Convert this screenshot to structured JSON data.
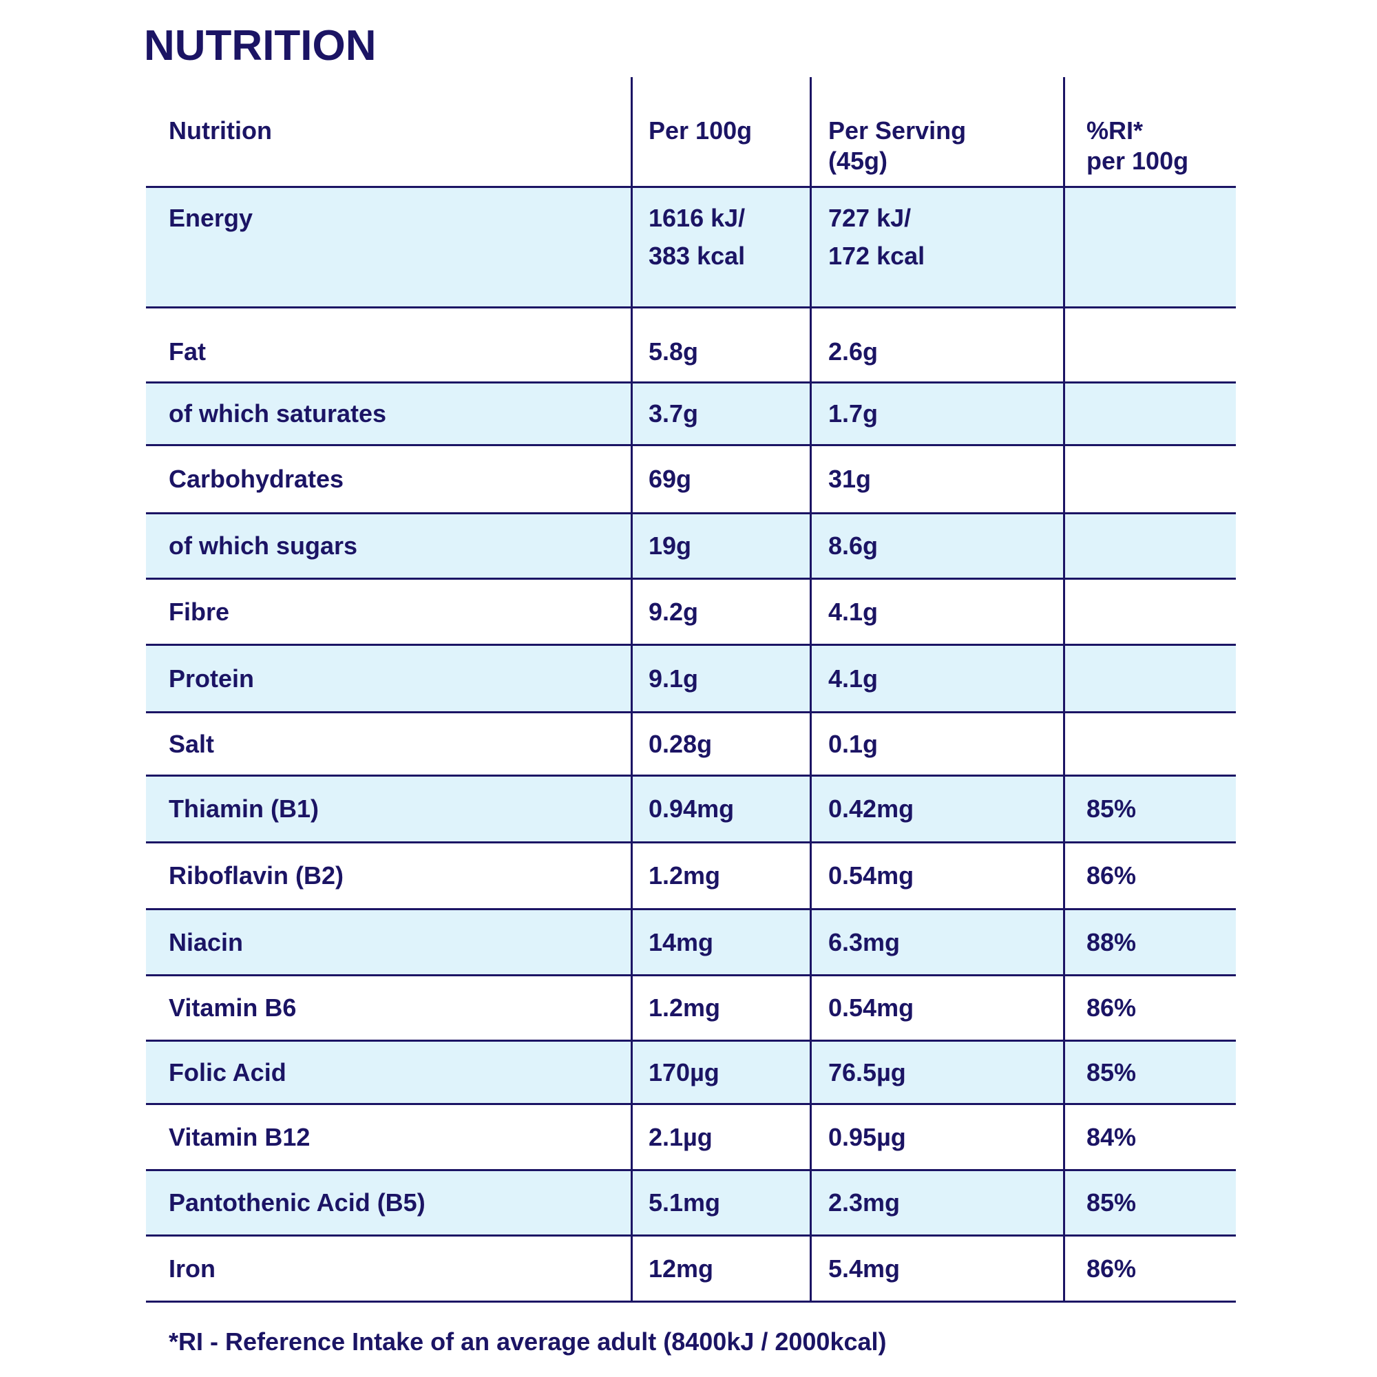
{
  "title": "NUTRITION",
  "colors": {
    "text": "#1b1464",
    "shade": "#dff3fb",
    "line": "#1b1464"
  },
  "header": [
    "Nutrition",
    "Per 100g",
    "Per Serving\n(45g)",
    "%RI*\nper 100g"
  ],
  "header_lines": {
    "c0": "Nutrition",
    "c1": "Per 100g",
    "c2a": "Per Serving",
    "c2b": "(45g)",
    "c3a": "%RI*",
    "c3b": "per 100g"
  },
  "energy": {
    "name": "Energy",
    "per100_kj": "1616 kJ/",
    "per100_kcal": "383 kcal",
    "serv_kj": "727 kJ/",
    "serv_kcal": "172 kcal",
    "ri": ""
  },
  "rows": [
    {
      "name": "Fat",
      "per100": "5.8g",
      "serving": "2.6g",
      "ri": ""
    },
    {
      "name": "of which saturates",
      "per100": "3.7g",
      "serving": "1.7g",
      "ri": ""
    },
    {
      "name": "Carbohydrates",
      "per100": "69g",
      "serving": "31g",
      "ri": ""
    },
    {
      "name": "of which sugars",
      "per100": "19g",
      "serving": "8.6g",
      "ri": ""
    },
    {
      "name": "Fibre",
      "per100": "9.2g",
      "serving": "4.1g",
      "ri": ""
    },
    {
      "name": "Protein",
      "per100": "9.1g",
      "serving": "4.1g",
      "ri": ""
    },
    {
      "name": "Salt",
      "per100": "0.28g",
      "serving": "0.1g",
      "ri": ""
    },
    {
      "name": "Thiamin (B1)",
      "per100": "0.94mg",
      "serving": "0.42mg",
      "ri": "85%"
    },
    {
      "name": "Riboflavin (B2)",
      "per100": "1.2mg",
      "serving": "0.54mg",
      "ri": "86%"
    },
    {
      "name": "Niacin",
      "per100": "14mg",
      "serving": "6.3mg",
      "ri": "88%"
    },
    {
      "name": "Vitamin B6",
      "per100": "1.2mg",
      "serving": "0.54mg",
      "ri": "86%"
    },
    {
      "name": "Folic Acid",
      "per100": "170µg",
      "serving": "76.5µg",
      "ri": "85%"
    },
    {
      "name": "Vitamin B12",
      "per100": "2.1µg",
      "serving": "0.95µg",
      "ri": "84%"
    },
    {
      "name": "Pantothenic Acid (B5)",
      "per100": "5.1mg",
      "serving": "2.3mg",
      "ri": "85%"
    },
    {
      "name": "Iron",
      "per100": "12mg",
      "serving": "5.4mg",
      "ri": "86%"
    }
  ],
  "footer": "*RI - Reference Intake of an average adult (8400kJ / 2000kcal)"
}
